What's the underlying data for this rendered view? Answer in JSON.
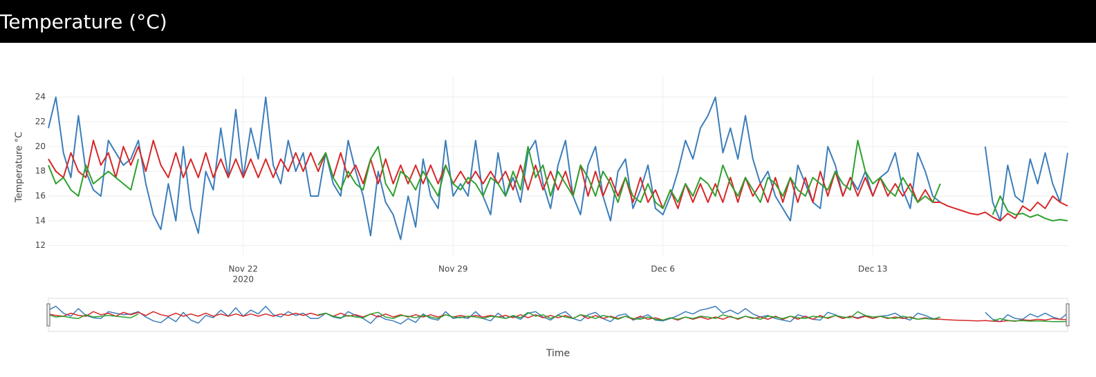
{
  "header": {
    "title": "Temperature (°C)"
  },
  "chart_data": {
    "type": "line",
    "y_axis_label": "Temperature °C",
    "x_axis_label": "Time",
    "x": [
      "2020-11-15 12:00",
      "2020-11-15 18:00",
      "2020-11-16 00:00",
      "2020-11-16 06:00",
      "2020-11-16 12:00",
      "2020-11-16 18:00",
      "2020-11-17 00:00",
      "2020-11-17 06:00",
      "2020-11-17 12:00",
      "2020-11-17 18:00",
      "2020-11-18 00:00",
      "2020-11-18 06:00",
      "2020-11-18 12:00",
      "2020-11-18 18:00",
      "2020-11-19 00:00",
      "2020-11-19 06:00",
      "2020-11-19 12:00",
      "2020-11-19 18:00",
      "2020-11-20 00:00",
      "2020-11-20 06:00",
      "2020-11-20 12:00",
      "2020-11-20 18:00",
      "2020-11-21 00:00",
      "2020-11-21 06:00",
      "2020-11-21 12:00",
      "2020-11-21 18:00",
      "2020-11-22 00:00",
      "2020-11-22 06:00",
      "2020-11-22 12:00",
      "2020-11-22 18:00",
      "2020-11-23 00:00",
      "2020-11-23 06:00",
      "2020-11-23 12:00",
      "2020-11-23 18:00",
      "2020-11-24 00:00",
      "2020-11-24 06:00",
      "2020-11-24 12:00",
      "2020-11-24 18:00",
      "2020-11-25 00:00",
      "2020-11-25 06:00",
      "2020-11-25 12:00",
      "2020-11-25 18:00",
      "2020-11-26 00:00",
      "2020-11-26 06:00",
      "2020-11-26 12:00",
      "2020-11-26 18:00",
      "2020-11-27 00:00",
      "2020-11-27 06:00",
      "2020-11-27 12:00",
      "2020-11-27 18:00",
      "2020-11-28 00:00",
      "2020-11-28 06:00",
      "2020-11-28 12:00",
      "2020-11-28 18:00",
      "2020-11-29 00:00",
      "2020-11-29 06:00",
      "2020-11-29 12:00",
      "2020-11-29 18:00",
      "2020-11-30 00:00",
      "2020-11-30 06:00",
      "2020-11-30 12:00",
      "2020-11-30 18:00",
      "2020-12-01 00:00",
      "2020-12-01 06:00",
      "2020-12-01 12:00",
      "2020-12-01 18:00",
      "2020-12-02 00:00",
      "2020-12-02 06:00",
      "2020-12-02 12:00",
      "2020-12-02 18:00",
      "2020-12-03 00:00",
      "2020-12-03 06:00",
      "2020-12-03 12:00",
      "2020-12-03 18:00",
      "2020-12-04 00:00",
      "2020-12-04 06:00",
      "2020-12-04 12:00",
      "2020-12-04 18:00",
      "2020-12-05 00:00",
      "2020-12-05 06:00",
      "2020-12-05 12:00",
      "2020-12-05 18:00",
      "2020-12-06 00:00",
      "2020-12-06 06:00",
      "2020-12-06 12:00",
      "2020-12-06 18:00",
      "2020-12-07 00:00",
      "2020-12-07 06:00",
      "2020-12-07 12:00",
      "2020-12-07 18:00",
      "2020-12-08 00:00",
      "2020-12-08 06:00",
      "2020-12-08 12:00",
      "2020-12-08 18:00",
      "2020-12-09 00:00",
      "2020-12-09 06:00",
      "2020-12-09 12:00",
      "2020-12-09 18:00",
      "2020-12-10 00:00",
      "2020-12-10 06:00",
      "2020-12-10 12:00",
      "2020-12-10 18:00",
      "2020-12-11 00:00",
      "2020-12-11 06:00",
      "2020-12-11 12:00",
      "2020-12-11 18:00",
      "2020-12-12 00:00",
      "2020-12-12 06:00",
      "2020-12-12 12:00",
      "2020-12-12 18:00",
      "2020-12-13 00:00",
      "2020-12-13 06:00",
      "2020-12-13 12:00",
      "2020-12-13 18:00",
      "2020-12-14 00:00",
      "2020-12-14 06:00",
      "2020-12-14 12:00",
      "2020-12-14 18:00",
      "2020-12-15 00:00",
      "2020-12-15 06:00",
      "2020-12-15 12:00",
      "2020-12-15 18:00",
      "2020-12-16 00:00",
      "2020-12-16 06:00",
      "2020-12-16 12:00",
      "2020-12-16 18:00",
      "2020-12-17 00:00",
      "2020-12-17 06:00",
      "2020-12-17 12:00",
      "2020-12-17 18:00",
      "2020-12-18 00:00",
      "2020-12-18 06:00",
      "2020-12-18 12:00",
      "2020-12-18 18:00",
      "2020-12-19 00:00",
      "2020-12-19 06:00",
      "2020-12-19 12:00"
    ],
    "series": [
      {
        "color": "#3a7dba",
        "values": [
          21.5,
          24,
          19.5,
          17.5,
          22.5,
          18,
          16.5,
          16,
          20.5,
          19.5,
          18.5,
          19,
          20.5,
          17,
          14.5,
          13.3,
          17,
          14,
          20,
          15,
          13,
          18,
          16.5,
          21.5,
          17.5,
          23,
          17.5,
          21.5,
          19,
          24,
          18.5,
          17,
          20.5,
          18,
          19.5,
          16,
          16,
          19.5,
          17,
          16,
          20.5,
          18,
          16,
          12.8,
          18,
          15.5,
          14.5,
          12.5,
          16,
          13.5,
          19,
          16,
          15,
          20.5,
          16,
          17,
          16,
          20.5,
          16,
          14.5,
          19.5,
          16,
          17.5,
          15.5,
          19.5,
          20.5,
          17,
          15,
          18.5,
          20.5,
          16,
          14.5,
          18.5,
          20,
          16,
          14,
          18,
          19,
          15,
          16.5,
          18.5,
          15,
          14.5,
          16,
          18,
          20.5,
          19,
          21.5,
          22.5,
          24,
          19.5,
          21.5,
          19,
          22.5,
          19,
          17,
          18,
          16,
          15,
          14,
          18.5,
          17,
          15.5,
          15,
          20,
          18.5,
          16,
          17.5,
          16.5,
          18,
          16,
          17.5,
          18,
          19.5,
          16.5,
          15,
          19.5,
          18,
          16,
          15.5,
          null,
          null,
          null,
          null,
          null,
          20,
          15.5,
          14,
          18.5,
          16,
          15.5,
          19,
          17,
          19.5,
          17,
          15.5,
          19.5
        ]
      },
      {
        "color": "#d62728",
        "values": [
          19,
          18,
          17.5,
          19.5,
          18,
          17.5,
          20.5,
          18.5,
          19.5,
          17.5,
          20,
          18.5,
          20,
          18,
          20.5,
          18.5,
          17.5,
          19.5,
          17.5,
          19,
          17.5,
          19.5,
          17.5,
          19,
          17.5,
          19,
          17.5,
          19,
          17.5,
          19,
          17.5,
          19,
          18,
          19.5,
          18,
          19.5,
          18,
          19.5,
          17.5,
          19.5,
          17.5,
          18.5,
          17,
          19,
          17,
          19,
          17,
          18.5,
          17,
          18.5,
          17,
          18.5,
          17,
          18.5,
          17,
          18,
          17,
          18,
          17,
          18,
          17,
          18,
          16.5,
          18.5,
          16.5,
          18.5,
          16.5,
          18,
          16.5,
          18,
          16,
          18.5,
          16,
          18,
          16,
          17.5,
          16,
          17.5,
          15.5,
          17.5,
          15.5,
          16.5,
          15,
          16.5,
          15,
          17,
          15.5,
          17,
          15.5,
          17,
          15.5,
          17.5,
          15.5,
          17.5,
          16,
          17,
          15.5,
          17.5,
          15.5,
          17.5,
          15.5,
          17.5,
          15.5,
          18,
          16,
          18,
          16,
          17.5,
          16,
          17.5,
          16,
          17.5,
          16,
          17,
          16,
          17,
          15.5,
          16.5,
          15.5,
          15.5,
          15.2,
          15,
          14.8,
          14.6,
          14.5,
          14.7,
          14.3,
          14,
          14.6,
          14.2,
          15.2,
          14.8,
          15.5,
          15,
          16,
          15.5,
          15.2
        ]
      },
      {
        "color": "#2ca02c",
        "values": [
          18.5,
          17,
          17.5,
          16.5,
          16,
          18.5,
          17,
          17.5,
          18,
          17.5,
          17,
          16.5,
          19,
          null,
          null,
          null,
          null,
          null,
          null,
          null,
          null,
          null,
          null,
          null,
          null,
          null,
          null,
          null,
          null,
          null,
          null,
          null,
          null,
          null,
          null,
          null,
          18.5,
          19.5,
          17.5,
          16.5,
          18,
          17,
          16.5,
          19,
          20,
          17,
          16,
          18,
          17.5,
          16.5,
          18,
          17,
          16,
          18.5,
          17,
          16.5,
          17.5,
          17,
          16,
          17.5,
          17,
          16,
          18,
          16.5,
          20,
          17.5,
          18.5,
          16,
          18,
          17,
          16,
          18.5,
          17.5,
          16,
          18,
          17,
          15.5,
          17.5,
          16,
          15.5,
          17,
          15.5,
          15,
          16.5,
          15.5,
          17,
          16,
          17.5,
          17,
          16,
          18.5,
          17,
          16,
          17.5,
          16.5,
          15.5,
          17.5,
          17,
          16,
          17.5,
          16.5,
          16,
          17.5,
          17,
          16.5,
          18,
          17,
          16.5,
          20.5,
          18,
          17,
          17.5,
          16.5,
          16,
          17.5,
          16.5,
          15.5,
          16,
          15.5,
          17,
          null,
          null,
          null,
          null,
          null,
          null,
          14.5,
          16,
          14.8,
          14.5,
          14.6,
          14.3,
          14.5,
          14.2,
          14,
          14.1,
          14
        ]
      }
    ],
    "xlim": [
      "2020-11-15 12:00",
      "2020-12-19 12:00"
    ],
    "xticks": [
      {
        "value": "2020-11-22 00:00",
        "label": "Nov 22",
        "year": "2020"
      },
      {
        "value": "2020-11-29 00:00",
        "label": "Nov 29"
      },
      {
        "value": "2020-12-06 00:00",
        "label": "Dec 6"
      },
      {
        "value": "2020-12-13 00:00",
        "label": "Dec 13"
      }
    ],
    "ylim": [
      11.2,
      25.6
    ],
    "yticks": [
      12,
      14,
      16,
      18,
      20,
      22,
      24
    ],
    "grid": true,
    "rangeslider": true
  }
}
